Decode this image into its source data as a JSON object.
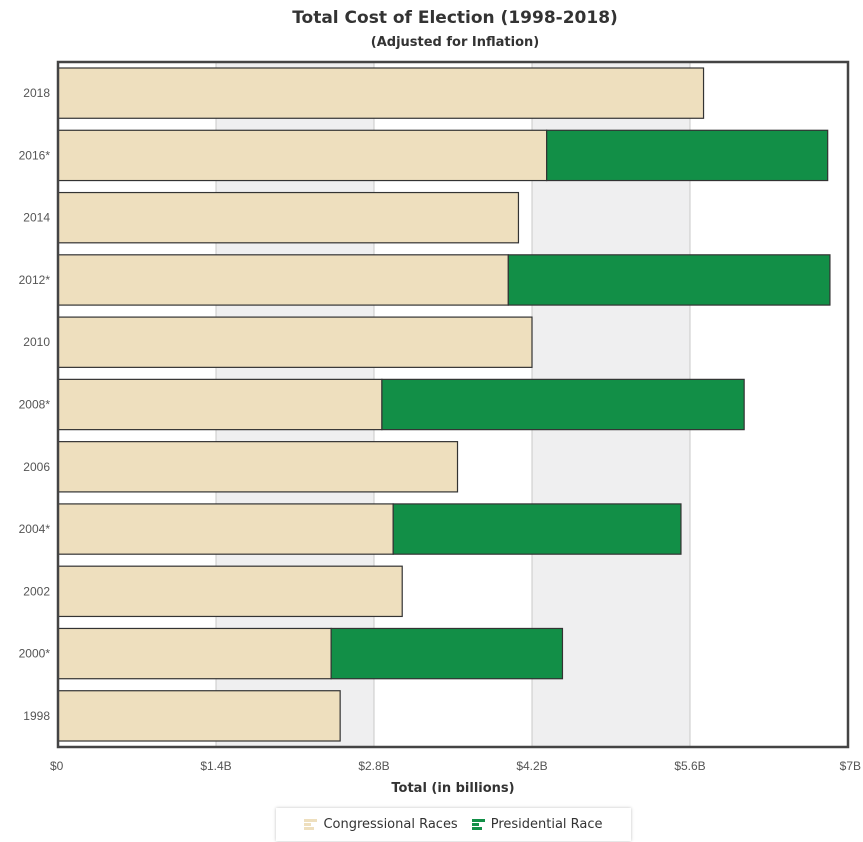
{
  "title": "Total Cost of Election (1998-2018)",
  "subtitle": "(Adjusted for Inflation)",
  "colors": {
    "congressional": "#eedfbe",
    "presidential": "#128f47",
    "band": "#efeff0",
    "grid": "#c8c8c8",
    "axis": "#444444"
  },
  "legend": {
    "congressional": "Congressional Races",
    "presidential": "Presidential Race"
  },
  "chart_data": {
    "type": "bar",
    "orientation": "horizontal",
    "stacked": true,
    "title": "Total Cost of Election (1998-2018)",
    "subtitle": "(Adjusted for Inflation)",
    "xlabel": "Total (in billions)",
    "ylabel": "",
    "xlim": [
      0,
      7
    ],
    "xticks": [
      "$0",
      "$1.4B",
      "$2.8B",
      "$4.2B",
      "$5.6B",
      "$7B"
    ],
    "xtick_values": [
      0,
      1.4,
      2.8,
      4.2,
      5.6,
      7
    ],
    "categories": [
      "2018",
      "2016*",
      "2014",
      "2012*",
      "2010",
      "2008*",
      "2006",
      "2004*",
      "2002",
      "2000*",
      "1998"
    ],
    "series": [
      {
        "name": "Congressional Races",
        "values": [
          5.72,
          4.33,
          4.08,
          3.99,
          4.2,
          2.87,
          3.54,
          2.97,
          3.05,
          2.42,
          2.5
        ]
      },
      {
        "name": "Presidential Race",
        "values": [
          0,
          2.49,
          0,
          2.85,
          0,
          3.21,
          0,
          2.55,
          0,
          2.05,
          0
        ]
      }
    ],
    "legend_position": "bottom",
    "grid": true
  }
}
